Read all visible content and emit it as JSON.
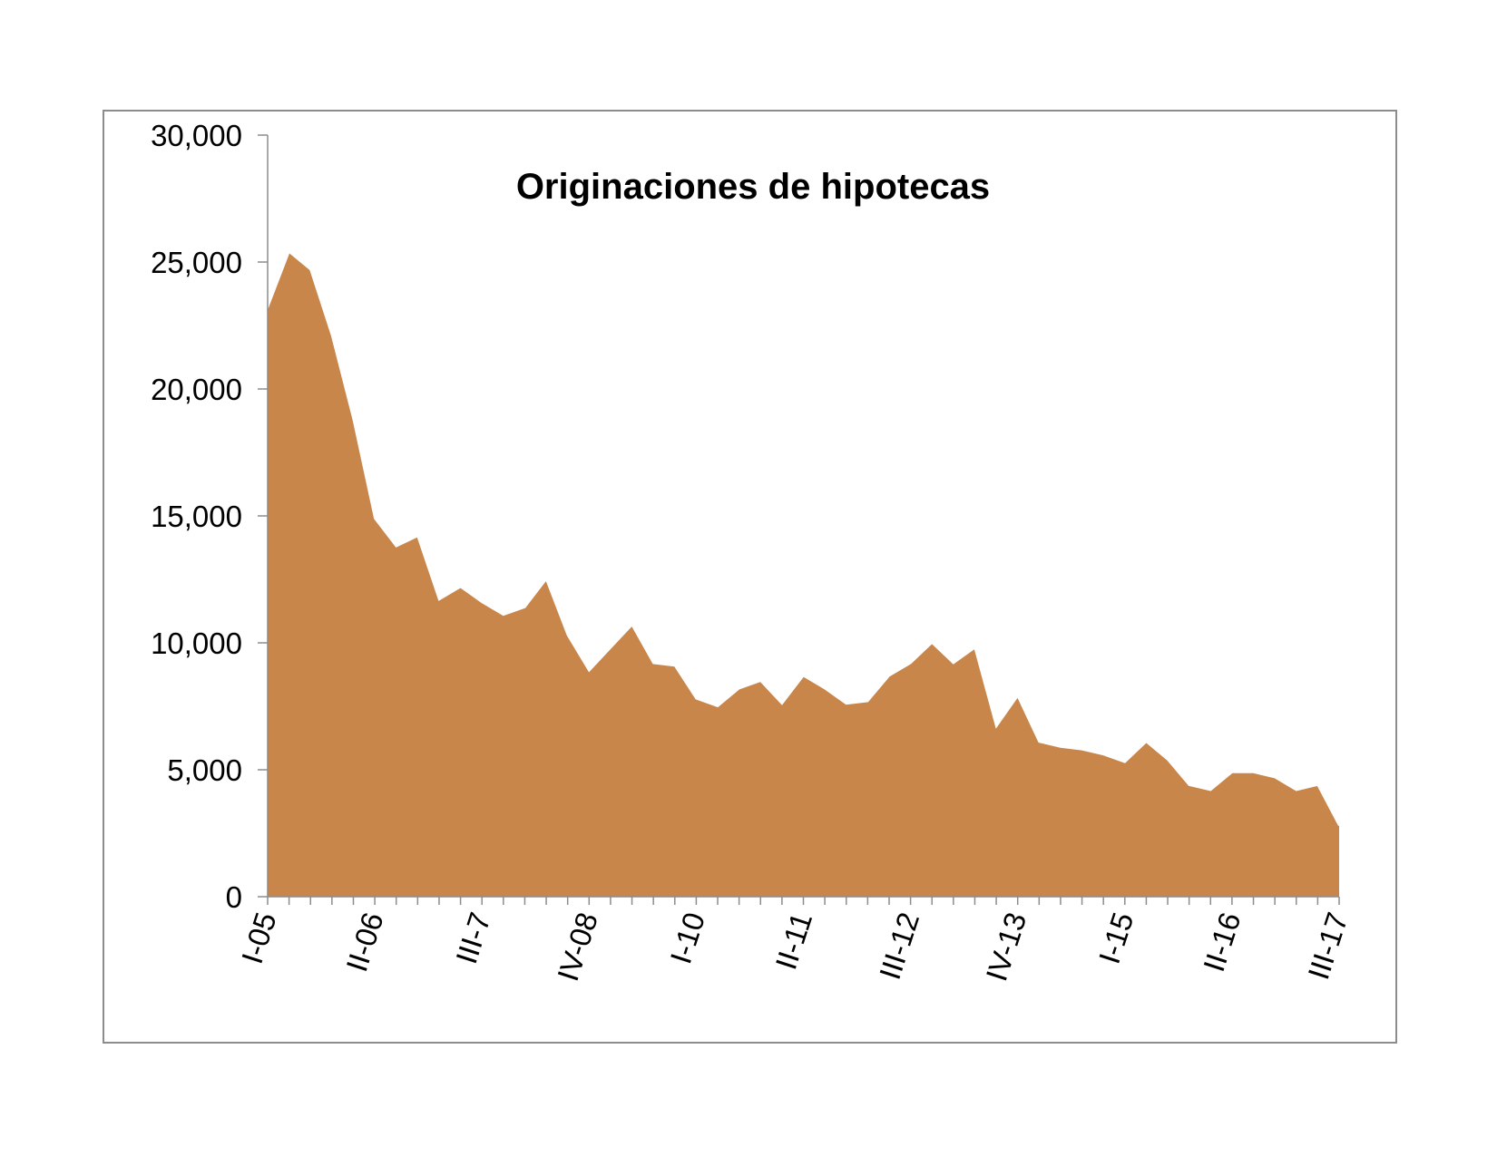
{
  "chart_data": {
    "type": "area",
    "title": "Originaciones de hipotecas",
    "xlabel": "",
    "ylabel": "",
    "ylim": [
      0,
      30000
    ],
    "yticks": [
      0,
      5000,
      10000,
      15000,
      20000,
      25000,
      30000
    ],
    "ytick_labels": [
      "0",
      "5,000",
      "10,000",
      "15,000",
      "20,000",
      "25,000",
      "30,000"
    ],
    "xtick_labels": [
      {
        "index": 0,
        "label": "I-05"
      },
      {
        "index": 5,
        "label": "II-06"
      },
      {
        "index": 10,
        "label": "III-7"
      },
      {
        "index": 15,
        "label": "IV-08"
      },
      {
        "index": 20,
        "label": "I-10"
      },
      {
        "index": 25,
        "label": "II-11"
      },
      {
        "index": 30,
        "label": "III-12"
      },
      {
        "index": 35,
        "label": "IV-13"
      },
      {
        "index": 40,
        "label": "I-15"
      },
      {
        "index": 45,
        "label": "II-16"
      },
      {
        "index": 50,
        "label": "III-17"
      }
    ],
    "legend": "none",
    "grid": false,
    "series": [
      {
        "color": "#c8864a",
        "values": [
          23200,
          25400,
          24700,
          22100,
          18800,
          14900,
          13800,
          14200,
          11700,
          12200,
          11600,
          11100,
          11400,
          12500,
          10300,
          8900,
          9800,
          10700,
          9200,
          9100,
          7800,
          7500,
          8200,
          8500,
          7600,
          8700,
          8200,
          7600,
          7700,
          8700,
          9200,
          10000,
          9200,
          9800,
          6700,
          7900,
          6100,
          5900,
          5800,
          5600,
          5300,
          6100,
          5400,
          4400,
          4200,
          4900,
          4900,
          4700,
          4200,
          4400,
          2800
        ]
      }
    ]
  }
}
